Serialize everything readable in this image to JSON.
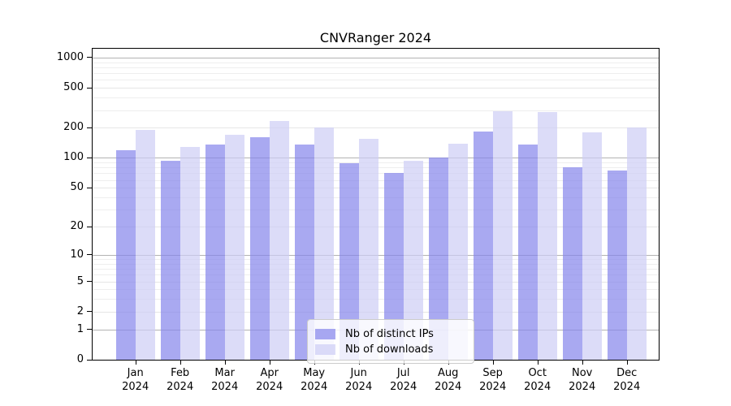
{
  "title": "CNVRanger 2024",
  "chart_data": {
    "type": "bar",
    "title": "CNVRanger 2024",
    "categories": [
      "Jan",
      "Feb",
      "Mar",
      "Apr",
      "May",
      "Jun",
      "Jul",
      "Aug",
      "Sep",
      "Oct",
      "Nov",
      "Dec"
    ],
    "category_year": "2024",
    "series": [
      {
        "name": "Nb of distinct IPs",
        "color": "#8484eb",
        "values": [
          120,
          93,
          136,
          160,
          137,
          89,
          71,
          100,
          185,
          135,
          80,
          75
        ]
      },
      {
        "name": "Nb of downloads",
        "color": "#cdcdf5",
        "values": [
          192,
          128,
          171,
          235,
          200,
          156,
          93,
          140,
          291,
          288,
          180,
          202
        ]
      }
    ],
    "bar_opacity": 0.7,
    "yscale": "log1p",
    "ylim": [
      0,
      1260
    ],
    "yticks": [
      0,
      1,
      2,
      5,
      10,
      20,
      50,
      100,
      200,
      500,
      1000
    ],
    "minor_yticks": [
      3,
      4,
      6,
      7,
      8,
      9,
      30,
      40,
      60,
      70,
      80,
      90,
      300,
      400,
      600,
      700,
      800,
      900
    ],
    "grid": true,
    "legend_position": "lower center",
    "xlabel": "",
    "ylabel": ""
  },
  "colors": {
    "grid_decade": "#b3b3b3",
    "grid_mid": "#e6e6e6",
    "grid_minor": "#eeeeee",
    "spine": "#000000",
    "text": "#000000",
    "legend_border": "#cccccc"
  }
}
